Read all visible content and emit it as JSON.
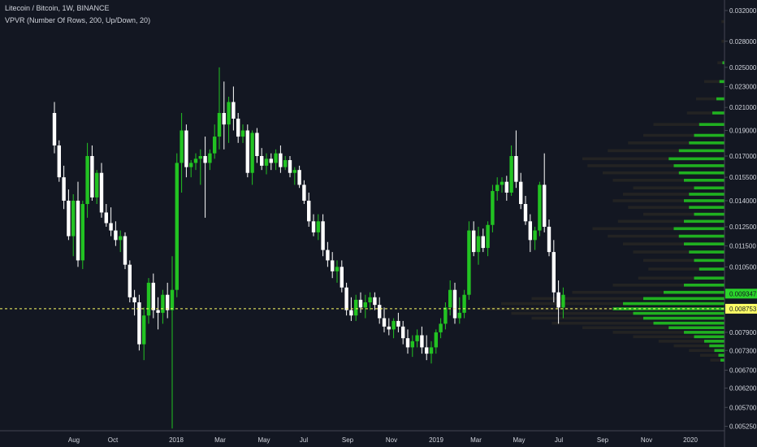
{
  "header": {
    "symbol_line": "Litecoin / Bitcoin, 1W, BINANCE",
    "indicator_line": "VPVR (Number Of Rows, 200, Up/Down, 20)"
  },
  "colors": {
    "background": "#131722",
    "up_candle": "#22c322",
    "down_candle": "#ffffff",
    "vp_up": "#20b020",
    "vp_down": "#232323",
    "poc_line": "#ffff66",
    "last_price_tag": "#2bd32b",
    "poc_tag": "#ffff66"
  },
  "chart_data": {
    "type": "candlestick",
    "timeframe": "1W",
    "y_scale": "log",
    "ylim": [
      0.00515,
      0.0335
    ],
    "y_ticks": [
      "0.032000",
      "0.028000",
      "0.025000",
      "0.023000",
      "0.021000",
      "0.019000",
      "0.017000",
      "0.015500",
      "0.014000",
      "0.012500",
      "0.011500",
      "0.010500",
      "0.007900",
      "0.007300",
      "0.006700",
      "0.006200",
      "0.005700",
      "0.005250"
    ],
    "x_ticks": [
      "Aug",
      "Oct",
      "2018",
      "Mar",
      "May",
      "Jul",
      "Sep",
      "Nov",
      "2019",
      "Mar",
      "May",
      "Jul",
      "Sep",
      "Nov",
      "2020"
    ],
    "price_tags": {
      "last_price": "0.009347",
      "poc_price": "0.008753"
    },
    "candles_ohlc": [
      [
        0.0205,
        0.0215,
        0.0172,
        0.0178
      ],
      [
        0.0178,
        0.0182,
        0.0152,
        0.0155
      ],
      [
        0.0155,
        0.0163,
        0.0135,
        0.014
      ],
      [
        0.014,
        0.0147,
        0.0118,
        0.012
      ],
      [
        0.012,
        0.0144,
        0.011,
        0.014
      ],
      [
        0.014,
        0.0152,
        0.0105,
        0.0108
      ],
      [
        0.0108,
        0.014,
        0.0104,
        0.0138
      ],
      [
        0.0138,
        0.018,
        0.013,
        0.017
      ],
      [
        0.017,
        0.0178,
        0.014,
        0.0142
      ],
      [
        0.0142,
        0.016,
        0.0138,
        0.0158
      ],
      [
        0.0158,
        0.0165,
        0.013,
        0.0133
      ],
      [
        0.0133,
        0.0138,
        0.0125,
        0.0127
      ],
      [
        0.0127,
        0.0136,
        0.012,
        0.0123
      ],
      [
        0.0123,
        0.0128,
        0.0115,
        0.0118
      ],
      [
        0.0118,
        0.0123,
        0.0112,
        0.012
      ],
      [
        0.012,
        0.0122,
        0.0104,
        0.0106
      ],
      [
        0.0106,
        0.0108,
        0.009,
        0.0092
      ],
      [
        0.0092,
        0.0095,
        0.0085,
        0.009
      ],
      [
        0.009,
        0.0093,
        0.0073,
        0.0075
      ],
      [
        0.0075,
        0.0088,
        0.007,
        0.0085
      ],
      [
        0.0085,
        0.01,
        0.0082,
        0.0098
      ],
      [
        0.0098,
        0.0102,
        0.0084,
        0.0087
      ],
      [
        0.0087,
        0.0092,
        0.008,
        0.0086
      ],
      [
        0.0086,
        0.0095,
        0.0082,
        0.0093
      ],
      [
        0.0093,
        0.0098,
        0.0084,
        0.0087
      ],
      [
        0.0087,
        0.011,
        0.0052,
        0.0095
      ],
      [
        0.0095,
        0.0172,
        0.0092,
        0.0165
      ],
      [
        0.0165,
        0.0205,
        0.0145,
        0.019
      ],
      [
        0.019,
        0.0195,
        0.0155,
        0.0162
      ],
      [
        0.0162,
        0.0167,
        0.0155,
        0.0165
      ],
      [
        0.0165,
        0.0172,
        0.016,
        0.0168
      ],
      [
        0.0168,
        0.0175,
        0.015,
        0.017
      ],
      [
        0.017,
        0.0185,
        0.013,
        0.0165
      ],
      [
        0.0165,
        0.0175,
        0.016,
        0.0172
      ],
      [
        0.0172,
        0.0195,
        0.0168,
        0.0185
      ],
      [
        0.0185,
        0.025,
        0.0175,
        0.0205
      ],
      [
        0.0205,
        0.0235,
        0.0175,
        0.0195
      ],
      [
        0.0195,
        0.022,
        0.018,
        0.0215
      ],
      [
        0.0215,
        0.023,
        0.019,
        0.02
      ],
      [
        0.02,
        0.0205,
        0.018,
        0.0185
      ],
      [
        0.0185,
        0.0195,
        0.018,
        0.019
      ],
      [
        0.019,
        0.0195,
        0.0155,
        0.0158
      ],
      [
        0.0158,
        0.019,
        0.015,
        0.0188
      ],
      [
        0.0188,
        0.0192,
        0.0165,
        0.017
      ],
      [
        0.017,
        0.0176,
        0.016,
        0.0163
      ],
      [
        0.0163,
        0.0172,
        0.0157,
        0.0168
      ],
      [
        0.0168,
        0.0172,
        0.016,
        0.0165
      ],
      [
        0.0165,
        0.0175,
        0.016,
        0.0172
      ],
      [
        0.0172,
        0.0178,
        0.0158,
        0.0162
      ],
      [
        0.0162,
        0.017,
        0.016,
        0.0167
      ],
      [
        0.0167,
        0.017,
        0.0155,
        0.0158
      ],
      [
        0.0158,
        0.0162,
        0.015,
        0.016
      ],
      [
        0.016,
        0.0163,
        0.0148,
        0.015
      ],
      [
        0.015,
        0.0153,
        0.0138,
        0.014
      ],
      [
        0.014,
        0.0145,
        0.0125,
        0.0128
      ],
      [
        0.0128,
        0.0132,
        0.012,
        0.0122
      ],
      [
        0.0122,
        0.0132,
        0.0118,
        0.0128
      ],
      [
        0.0128,
        0.0132,
        0.011,
        0.0113
      ],
      [
        0.0113,
        0.0117,
        0.0105,
        0.0108
      ],
      [
        0.0108,
        0.0112,
        0.01,
        0.0103
      ],
      [
        0.0103,
        0.0108,
        0.0098,
        0.0105
      ],
      [
        0.0105,
        0.0108,
        0.0094,
        0.0096
      ],
      [
        0.0096,
        0.0098,
        0.0085,
        0.0087
      ],
      [
        0.0087,
        0.0092,
        0.0083,
        0.0085
      ],
      [
        0.0085,
        0.0093,
        0.0083,
        0.0091
      ],
      [
        0.0091,
        0.0094,
        0.0086,
        0.0088
      ],
      [
        0.0088,
        0.0093,
        0.0084,
        0.009
      ],
      [
        0.009,
        0.0094,
        0.0087,
        0.0092
      ],
      [
        0.0092,
        0.0094,
        0.0087,
        0.0089
      ],
      [
        0.0089,
        0.0092,
        0.0082,
        0.0084
      ],
      [
        0.0084,
        0.0088,
        0.0079,
        0.0081
      ],
      [
        0.0081,
        0.0084,
        0.0078,
        0.008
      ],
      [
        0.008,
        0.0084,
        0.0077,
        0.0083
      ],
      [
        0.0083,
        0.0086,
        0.0079,
        0.0081
      ],
      [
        0.0081,
        0.0083,
        0.0075,
        0.0077
      ],
      [
        0.0077,
        0.008,
        0.0072,
        0.0074
      ],
      [
        0.0074,
        0.0078,
        0.0071,
        0.0076
      ],
      [
        0.0076,
        0.008,
        0.0074,
        0.0078
      ],
      [
        0.0078,
        0.0081,
        0.0072,
        0.0074
      ],
      [
        0.0074,
        0.0078,
        0.007,
        0.0072
      ],
      [
        0.0072,
        0.0076,
        0.0069,
        0.0074
      ],
      [
        0.0074,
        0.008,
        0.0072,
        0.0079
      ],
      [
        0.0079,
        0.0084,
        0.0077,
        0.0082
      ],
      [
        0.0082,
        0.009,
        0.008,
        0.0088
      ],
      [
        0.0088,
        0.0099,
        0.0085,
        0.0095
      ],
      [
        0.0095,
        0.0098,
        0.0082,
        0.0084
      ],
      [
        0.0084,
        0.0092,
        0.0082,
        0.0086
      ],
      [
        0.0086,
        0.0095,
        0.0084,
        0.0093
      ],
      [
        0.0093,
        0.0128,
        0.0091,
        0.0123
      ],
      [
        0.0123,
        0.0128,
        0.011,
        0.0112
      ],
      [
        0.0112,
        0.0125,
        0.0106,
        0.012
      ],
      [
        0.012,
        0.0124,
        0.0112,
        0.0114
      ],
      [
        0.0114,
        0.0128,
        0.011,
        0.0126
      ],
      [
        0.0126,
        0.015,
        0.0122,
        0.0146
      ],
      [
        0.0146,
        0.0155,
        0.014,
        0.015
      ],
      [
        0.015,
        0.0155,
        0.0145,
        0.0152
      ],
      [
        0.0152,
        0.0156,
        0.014,
        0.0145
      ],
      [
        0.0145,
        0.0178,
        0.0143,
        0.017
      ],
      [
        0.017,
        0.019,
        0.0148,
        0.0152
      ],
      [
        0.0152,
        0.0158,
        0.0135,
        0.0138
      ],
      [
        0.0138,
        0.0143,
        0.0126,
        0.0128
      ],
      [
        0.0128,
        0.0132,
        0.0112,
        0.0118
      ],
      [
        0.0118,
        0.0125,
        0.0113,
        0.0123
      ],
      [
        0.0123,
        0.0152,
        0.012,
        0.015
      ],
      [
        0.015,
        0.0172,
        0.0122,
        0.0125
      ],
      [
        0.0125,
        0.0129,
        0.011,
        0.0112
      ],
      [
        0.0112,
        0.0118,
        0.009,
        0.0094
      ],
      [
        0.0094,
        0.0099,
        0.0082,
        0.0088
      ],
      [
        0.0088,
        0.0096,
        0.0084,
        0.0093
      ]
    ],
    "volume_profile": [
      [
        0.0305,
        0,
        0.003
      ],
      [
        0.028,
        0,
        0.003
      ],
      [
        0.0255,
        0.002,
        0.005
      ],
      [
        0.0235,
        0.005,
        0.015
      ],
      [
        0.0218,
        0.008,
        0.02
      ],
      [
        0.0205,
        0.012,
        0.025
      ],
      [
        0.0195,
        0.025,
        0.045
      ],
      [
        0.0186,
        0.03,
        0.05
      ],
      [
        0.018,
        0.035,
        0.06
      ],
      [
        0.0174,
        0.045,
        0.07
      ],
      [
        0.0168,
        0.055,
        0.085
      ],
      [
        0.0163,
        0.05,
        0.085
      ],
      [
        0.0158,
        0.045,
        0.075
      ],
      [
        0.0153,
        0.04,
        0.07
      ],
      [
        0.0148,
        0.03,
        0.06
      ],
      [
        0.0144,
        0.035,
        0.065
      ],
      [
        0.014,
        0.04,
        0.07
      ],
      [
        0.0136,
        0.035,
        0.06
      ],
      [
        0.0132,
        0.03,
        0.05
      ],
      [
        0.0128,
        0.04,
        0.065
      ],
      [
        0.0124,
        0.05,
        0.08
      ],
      [
        0.012,
        0.045,
        0.07
      ],
      [
        0.0116,
        0.04,
        0.06
      ],
      [
        0.0112,
        0.035,
        0.055
      ],
      [
        0.0108,
        0.03,
        0.05
      ],
      [
        0.0104,
        0.025,
        0.05
      ],
      [
        0.01,
        0.03,
        0.055
      ],
      [
        0.0097,
        0.04,
        0.07
      ],
      [
        0.0094,
        0.06,
        0.09
      ],
      [
        0.00915,
        0.08,
        0.11
      ],
      [
        0.00895,
        0.1,
        0.12
      ],
      [
        0.00875,
        0.11,
        0.13
      ],
      [
        0.00858,
        0.09,
        0.12
      ],
      [
        0.0084,
        0.08,
        0.11
      ],
      [
        0.00822,
        0.07,
        0.1
      ],
      [
        0.00806,
        0.055,
        0.085
      ],
      [
        0.0079,
        0.04,
        0.07
      ],
      [
        0.00775,
        0.03,
        0.06
      ],
      [
        0.0076,
        0.02,
        0.045
      ],
      [
        0.00745,
        0.015,
        0.035
      ],
      [
        0.0073,
        0.01,
        0.025
      ],
      [
        0.00715,
        0.006,
        0.018
      ],
      [
        0.007,
        0.004,
        0.01
      ]
    ]
  }
}
